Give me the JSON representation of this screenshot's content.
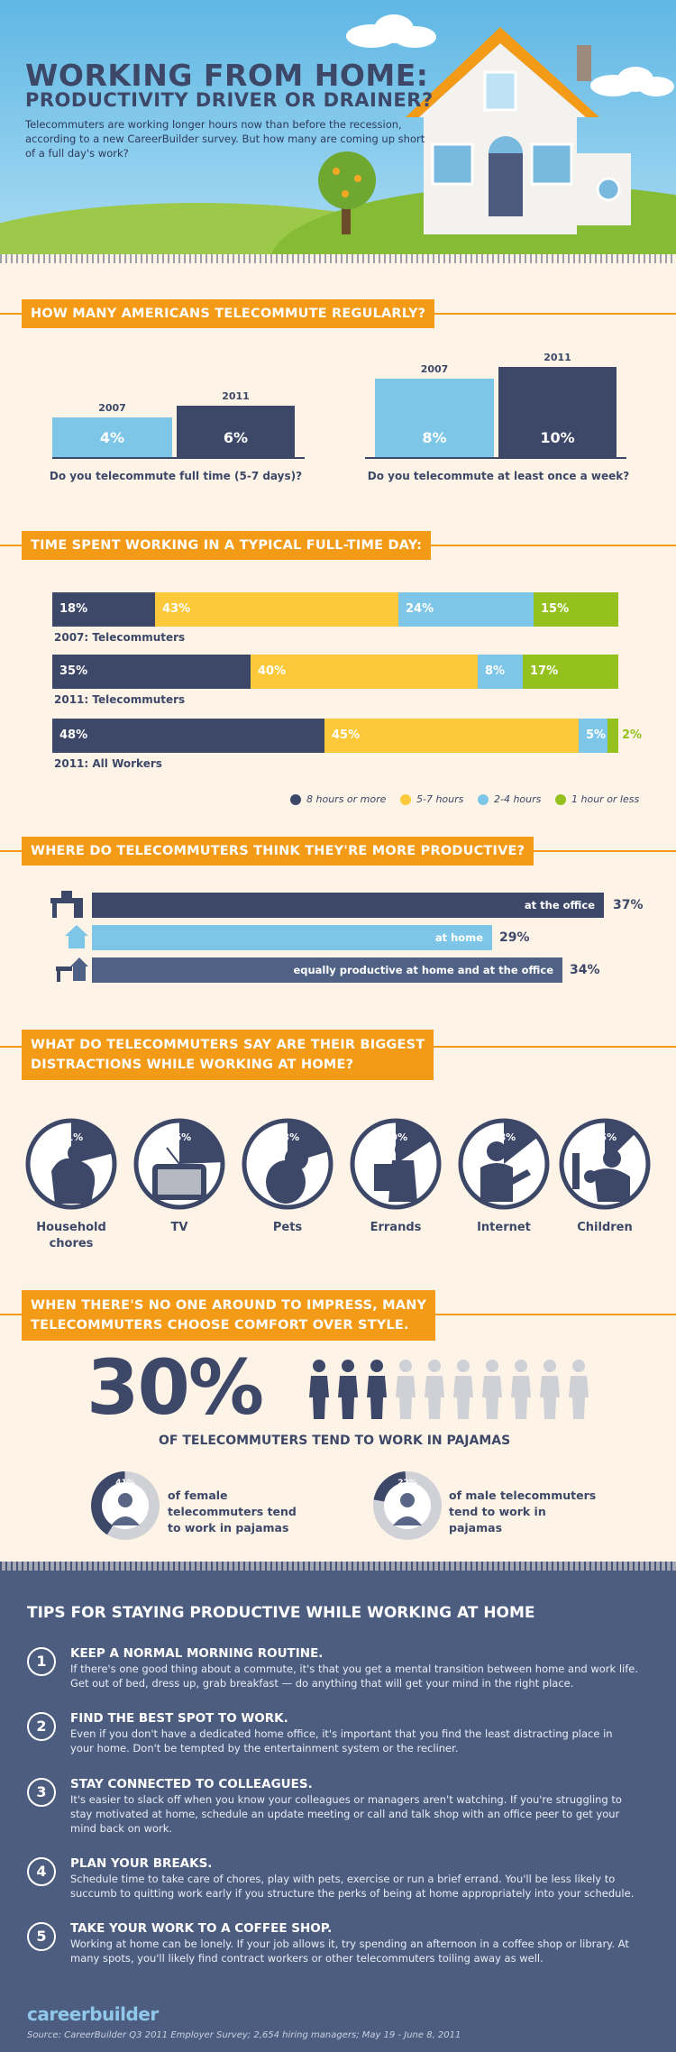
{
  "header": {
    "title": "WORKING FROM HOME:",
    "subtitle": "PRODUCTIVITY DRIVER OR DRAINER?",
    "intro": "Telecommuters are working longer hours now than before the recession, according to a new CareerBuilder survey.  But how many are coming up short of a full day's work?"
  },
  "section1": {
    "heading": "HOW MANY AMERICANS TELECOMMUTE REGULARLY?",
    "full_time": {
      "question": "Do you telecommute full time (5-7 days)?",
      "y2007_label": "2007",
      "y2007_value": "4%",
      "y2011_label": "2011",
      "y2011_value": "6%"
    },
    "weekly": {
      "question": "Do you telecommute at least once a week?",
      "y2007_label": "2007",
      "y2007_value": "8%",
      "y2011_label": "2011",
      "y2011_value": "10%"
    }
  },
  "section2": {
    "heading": "TIME SPENT WORKING IN A TYPICAL FULL-TIME DAY:",
    "rows": [
      {
        "label": "2007: Telecommuters",
        "v8": "18%",
        "v57": "43%",
        "v24": "24%",
        "v1": "15%"
      },
      {
        "label": "2011: Telecommuters",
        "v8": "35%",
        "v57": "40%",
        "v24": "8%",
        "v1": "17%"
      },
      {
        "label": "2011: All Workers",
        "v8": "48%",
        "v57": "45%",
        "v24": "5%",
        "v1": "2%"
      }
    ],
    "legend": [
      "8 hours or more",
      "5-7 hours",
      "2-4 hours",
      "1 hour or less"
    ],
    "colors": {
      "dark": "#3d4768",
      "yellow": "#fdc93a",
      "blue": "#7ec6e8",
      "green": "#95c11f"
    }
  },
  "section3": {
    "heading": "WHERE DO TELECOMMUTERS THINK THEY'RE MORE PRODUCTIVE?",
    "office": {
      "label": "at the office",
      "value": "37%"
    },
    "home": {
      "label": "at home",
      "value": "29%"
    },
    "equal": {
      "label": "equally productive at home and at the office",
      "value": "34%"
    }
  },
  "section4": {
    "heading_line1": "WHAT DO TELECOMMUTERS SAY ARE THEIR BIGGEST",
    "heading_line2": "DISTRACTIONS WHILE WORKING AT HOME?",
    "items": [
      {
        "pct": "31%",
        "label": "Household chores",
        "icon": "chores-icon"
      },
      {
        "pct": "26%",
        "label": "TV",
        "icon": "tv-icon"
      },
      {
        "pct": "23%",
        "label": "Pets",
        "icon": "cat-icon"
      },
      {
        "pct": "19%",
        "label": "Errands",
        "icon": "errands-icon"
      },
      {
        "pct": "18%",
        "label": "Internet",
        "icon": "laptop-icon"
      },
      {
        "pct": "15%",
        "label": "Children",
        "icon": "children-icon"
      }
    ]
  },
  "section5": {
    "heading_line1": "WHEN THERE'S NO ONE AROUND TO IMPRESS, MANY",
    "heading_line2": "TELECOMMUTERS CHOOSE COMFORT OVER STYLE.",
    "big_pct": "30%",
    "big_caption": "OF TELECOMMUTERS TEND TO WORK IN PAJAMAS",
    "female": {
      "pct": "41%",
      "text": "of female telecommuters tend to work in pajamas"
    },
    "male": {
      "pct": "22%",
      "text": "of male telecommuters tend to work in pajamas"
    }
  },
  "tips": {
    "heading": "TIPS FOR STAYING PRODUCTIVE WHILE WORKING AT HOME",
    "items": [
      {
        "num": "1",
        "title": "KEEP A NORMAL MORNING ROUTINE.",
        "body": "If there's one good thing about a commute, it's that you get a mental transition between home and work life. Get out of bed, dress up, grab breakfast — do anything that will get your mind in the right place."
      },
      {
        "num": "2",
        "title": "FIND THE BEST SPOT TO WORK.",
        "body": "Even if you don't have a dedicated home office, it's important that you find the least distracting place in your home. Don't be tempted by the entertainment system or the recliner."
      },
      {
        "num": "3",
        "title": "STAY CONNECTED TO COLLEAGUES.",
        "body": "It's easier to slack off when you know your colleagues or managers aren't watching. If you're struggling to stay motivated at home, schedule an update meeting or call and talk shop with an office peer to get your mind back on work."
      },
      {
        "num": "4",
        "title": "PLAN YOUR BREAKS.",
        "body": "Schedule time to take care of chores, play with pets, exercise or run a brief errand. You'll be less likely to succumb to quitting work early if you structure the perks of being at home appropriately into your schedule."
      },
      {
        "num": "5",
        "title": "TAKE YOUR WORK TO A COFFEE SHOP.",
        "body": "Working at home can be lonely. If your job allows it, try spending an afternoon in a coffee shop or library. At many spots, you'll likely find contract workers or other telecommuters toiling away as well."
      }
    ],
    "logo": "careerbuilder",
    "source": "Source: CareerBuilder Q3 2011 Employer Survey; 2,654 hiring managers; May 19 - June 8, 2011"
  }
}
